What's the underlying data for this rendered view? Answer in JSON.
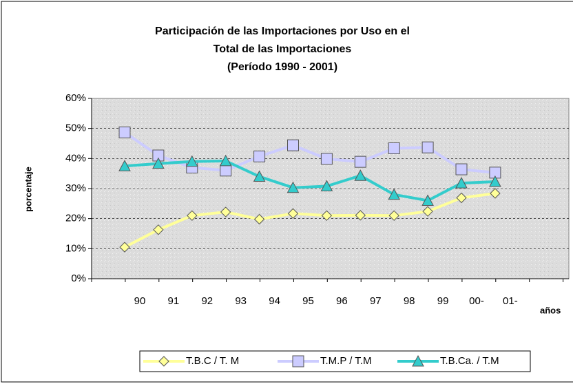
{
  "chart_data": {
    "type": "line",
    "title": [
      "Participación de las Importaciones por Uso en el",
      "Total de las Importaciones",
      "(Período 1990 - 2001)"
    ],
    "y_label": "porcentaje",
    "x_label": "años",
    "categories": [
      "90",
      "91",
      "92",
      "93",
      "94",
      "95",
      "96",
      "97",
      "98",
      "99",
      "00-",
      "01-"
    ],
    "series": [
      {
        "name": "T.B.C / T. M",
        "color": "#ffff99",
        "marker": "diamond",
        "values": [
          10.5,
          16.3,
          21,
          22.2,
          19.8,
          21.7,
          21,
          21.1,
          21,
          22.4,
          26.9,
          28.4
        ]
      },
      {
        "name": "T.M.P / T.M",
        "color": "#ccccff",
        "marker": "square",
        "values": [
          48.7,
          41,
          37,
          36,
          40.7,
          44.4,
          39.9,
          38.9,
          43.4,
          43.7,
          36.4,
          35.3
        ]
      },
      {
        "name": "T.B.Ca. / T.M",
        "color": "#33cccc",
        "marker": "triangle",
        "values": [
          37.5,
          38.3,
          39,
          39.2,
          34,
          30.3,
          30.8,
          34.3,
          28,
          26,
          31.8,
          32.3
        ]
      }
    ],
    "ylim": [
      0,
      60
    ],
    "yticks": [
      {
        "value": 0,
        "label": "0%"
      },
      {
        "value": 10,
        "label": "10%"
      },
      {
        "value": 20,
        "label": "20%"
      },
      {
        "value": 30,
        "label": "30%"
      },
      {
        "value": 40,
        "label": "40%"
      },
      {
        "value": 50,
        "label": "50%"
      },
      {
        "value": 60,
        "label": "60%"
      }
    ],
    "grid": true,
    "legend": "bottom"
  }
}
